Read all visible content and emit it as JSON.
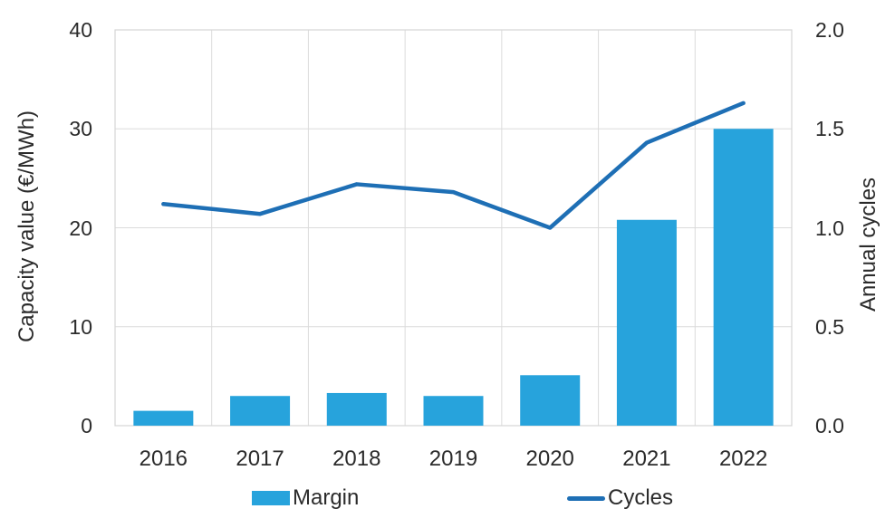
{
  "chart_data": {
    "type": "combo",
    "categories": [
      "2016",
      "2017",
      "2018",
      "2019",
      "2020",
      "2021",
      "2022"
    ],
    "series": [
      {
        "name": "Margin",
        "type": "bar",
        "axis": "left",
        "color": "#27A3DC",
        "values": [
          1.5,
          3.0,
          3.3,
          3.0,
          5.1,
          20.8,
          30.0
        ]
      },
      {
        "name": "Cycles",
        "type": "line",
        "axis": "right",
        "color": "#1E6FB5",
        "values": [
          1.12,
          1.07,
          1.22,
          1.18,
          1.0,
          1.43,
          1.63
        ]
      }
    ],
    "left_axis": {
      "label": "Capacity value (€/MWh)",
      "ticks": [
        "40",
        "30",
        "20",
        "10",
        "0"
      ],
      "min": 0,
      "max": 40
    },
    "right_axis": {
      "label": "Annual cycles",
      "ticks": [
        "2.0",
        "1.5",
        "1.0",
        "0.5",
        "0.0"
      ],
      "min": 0.0,
      "max": 2.0
    },
    "grid": true,
    "legend_position": "bottom",
    "grid_color": "#DBDBDB",
    "border_color": "#D6D6D6",
    "text_color": "#2b2b2b"
  }
}
